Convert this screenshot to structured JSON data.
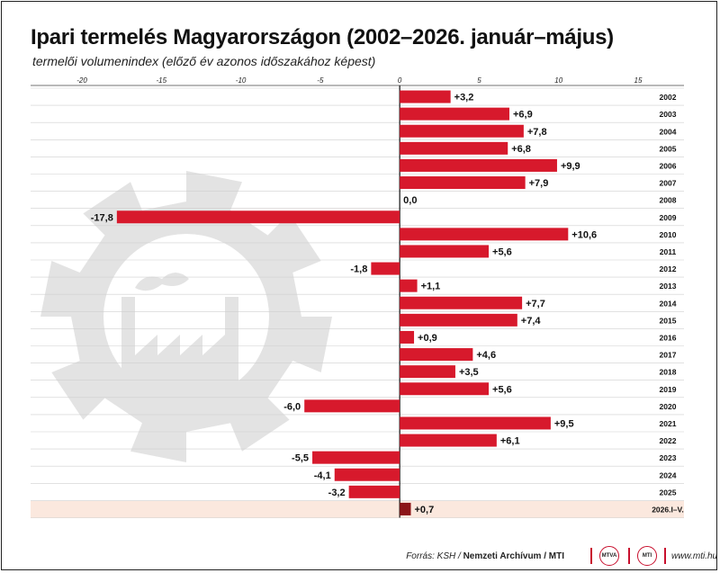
{
  "title": "Ipari termelés Magyarországon (2002–2026. január–május)",
  "subtitle": "termelői volumenindex (előző év azonos időszakához képest)",
  "footer": {
    "source_prefix": "Forrás: KSH / ",
    "source_bold": "Nemzeti Archívum / MTI",
    "logo_mtva": "MTVA",
    "logo_mti": "MTI",
    "url": "www.mti.hu"
  },
  "colors": {
    "bar": "#d7192c",
    "bar_highlight": "#8c1518",
    "highlight_row_bg": "#fbe8de",
    "background_graphic": "#e3e3e3"
  },
  "icons": [
    "factory-gear-watermark"
  ],
  "chart_data": {
    "type": "bar",
    "orientation": "horizontal",
    "categories": [
      "2002",
      "2003",
      "2004",
      "2005",
      "2006",
      "2007",
      "2008",
      "2009",
      "2010",
      "2011",
      "2012",
      "2013",
      "2014",
      "2015",
      "2016",
      "2017",
      "2018",
      "2019",
      "2020",
      "2021",
      "2022",
      "2023",
      "2024",
      "2025",
      "2026.I–V."
    ],
    "values": [
      3.2,
      6.9,
      7.8,
      6.8,
      9.9,
      7.9,
      0.0,
      -17.8,
      10.6,
      5.6,
      -1.8,
      1.1,
      7.7,
      7.4,
      0.9,
      4.6,
      3.5,
      5.6,
      -6.0,
      9.5,
      6.1,
      -5.5,
      -4.1,
      -3.2,
      0.7
    ],
    "labels": [
      "+3,2",
      "+6,9",
      "+7,8",
      "+6,8",
      "+9,9",
      "+7,9",
      "0,0",
      "-17,8",
      "+10,6",
      "+5,6",
      "-1,8",
      "+1,1",
      "+7,7",
      "+7,4",
      "+0,9",
      "+4,6",
      "+3,5",
      "+5,6",
      "-6,0",
      "+9,5",
      "+6,1",
      "-5,5",
      "-4,1",
      "-3,2",
      "+0,7"
    ],
    "highlight_index": 24,
    "xlim": [
      -20,
      15
    ],
    "ticks": [
      -20,
      -15,
      -10,
      -5,
      0,
      5,
      10,
      15
    ],
    "tick_labels": [
      "-20",
      "-15",
      "-10",
      "-5",
      "0",
      "5",
      "10",
      "15"
    ],
    "grid": false,
    "legend": "none"
  }
}
